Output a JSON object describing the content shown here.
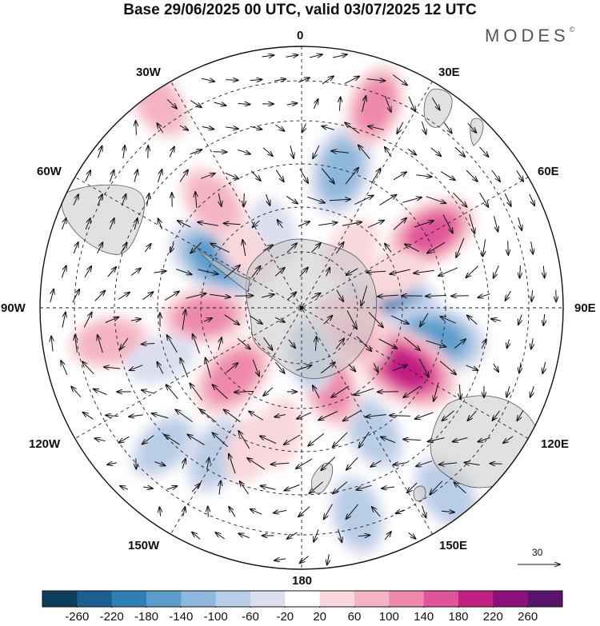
{
  "title": "Base 29/06/2025 00 UTC, valid 03/07/2025 12 UTC",
  "brand": "MODES",
  "brand_mark": "©",
  "longitude_labels": {
    "lon_0": "0",
    "lon_30e": "30E",
    "lon_60e": "60E",
    "lon_90e": "90E",
    "lon_120e": "120E",
    "lon_150e": "150E",
    "lon_180": "180",
    "lon_150w": "150W",
    "lon_120w": "120W",
    "lon_90w": "90W",
    "lon_60w": "60W",
    "lon_30w": "30W"
  },
  "vector_reference": {
    "label": "30"
  },
  "colorbar": {
    "ticks": [
      "-260",
      "-220",
      "-180",
      "-140",
      "-100",
      "-60",
      "-20",
      "20",
      "60",
      "100",
      "140",
      "180",
      "220",
      "260"
    ],
    "colors": [
      "#0e3d5c",
      "#1a5f8f",
      "#2e7fb5",
      "#5a9ccb",
      "#8db8dc",
      "#b8cde6",
      "#dcdff0",
      "#ffffff",
      "#f9d8dd",
      "#f4b4c3",
      "#ee88ad",
      "#e0559a",
      "#c21f83",
      "#8e0f7c",
      "#5a136d"
    ]
  },
  "anomaly_cells": [
    {
      "lon": 90,
      "lat": -60,
      "value": -200
    },
    {
      "lon": 103,
      "lat": -42,
      "value": -170
    },
    {
      "lon": 120,
      "lat": -47,
      "value": 190
    },
    {
      "lon": 150,
      "lat": -40,
      "value": -90
    },
    {
      "lon": 16,
      "lat": -40,
      "value": -130
    },
    {
      "lon": 60,
      "lat": -38,
      "value": 140
    },
    {
      "lon": 142,
      "lat": -15,
      "value": -95
    },
    {
      "lon": 165,
      "lat": -20,
      "value": -90
    },
    {
      "lon": 100,
      "lat": -72,
      "value": 60
    },
    {
      "lon": -60,
      "lat": -55,
      "value": -170
    },
    {
      "lon": -95,
      "lat": -55,
      "value": 110
    },
    {
      "lon": -135,
      "lat": -55,
      "value": 130
    },
    {
      "lon": -40,
      "lat": -42,
      "value": 90
    },
    {
      "lon": 20,
      "lat": -20,
      "value": 100
    },
    {
      "lon": -35,
      "lat": -12,
      "value": 70
    },
    {
      "lon": -100,
      "lat": -25,
      "value": 90
    },
    {
      "lon": 160,
      "lat": -60,
      "value": 110
    },
    {
      "lon": 120,
      "lat": -68,
      "value": 60
    },
    {
      "lon": -135,
      "lat": -25,
      "value": -70
    },
    {
      "lon": -150,
      "lat": -32,
      "value": -90
    },
    {
      "lon": -170,
      "lat": -45,
      "value": 50
    },
    {
      "lon": -160,
      "lat": -38,
      "value": 50
    },
    {
      "lon": 70,
      "lat": -55,
      "value": 50
    },
    {
      "lon": -20,
      "lat": -60,
      "value": -40
    },
    {
      "lon": -45,
      "lat": -62,
      "value": 40
    },
    {
      "lon": 170,
      "lat": -72,
      "value": -60
    },
    {
      "lon": -110,
      "lat": -38,
      "value": -50
    },
    {
      "lon": 40,
      "lat": -62,
      "value": 40
    }
  ]
}
